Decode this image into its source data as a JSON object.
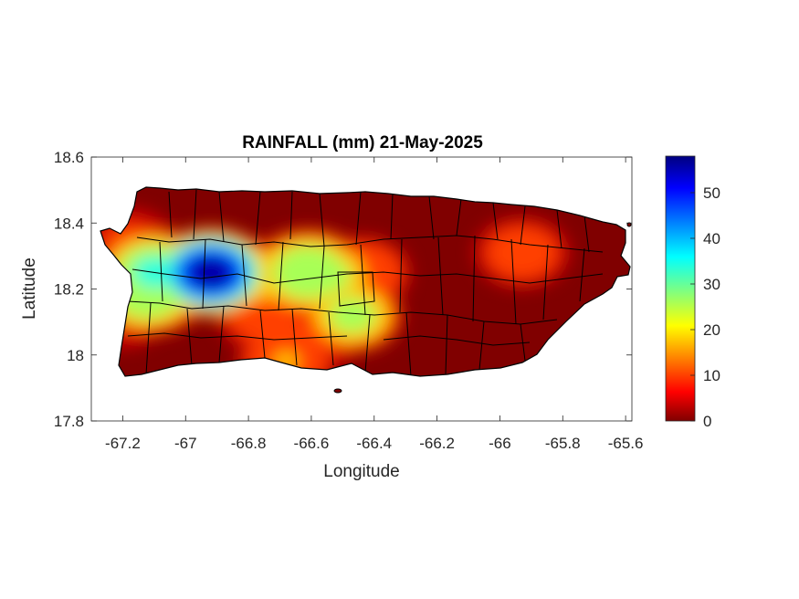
{
  "chart_data": {
    "type": "heatmap",
    "title": "RAINFALL (mm) 21-May-2025",
    "xlabel": "Longitude",
    "ylabel": "Latitude",
    "xlim": [
      -67.3,
      -65.58
    ],
    "ylim": [
      17.8,
      18.6
    ],
    "x_ticks": [
      "-67.2",
      "-67",
      "-66.8",
      "-66.6",
      "-66.4",
      "-66.2",
      "-66",
      "-65.8",
      "-65.6"
    ],
    "y_ticks": [
      "18.6",
      "18.4",
      "18.2",
      "18",
      "17.8"
    ],
    "colorbar": {
      "range": [
        0,
        58
      ],
      "ticks": [
        "0",
        "10",
        "20",
        "30",
        "40",
        "50"
      ],
      "colormap": "jet"
    },
    "rain_cells": [
      {
        "lon": -66.92,
        "lat": 18.25,
        "value": 58
      },
      {
        "lon": -67.1,
        "lat": 18.25,
        "value": 35
      },
      {
        "lon": -67.12,
        "lat": 18.19,
        "value": 33
      },
      {
        "lon": -66.98,
        "lat": 18.24,
        "value": 28
      },
      {
        "lon": -66.8,
        "lat": 18.24,
        "value": 24
      },
      {
        "lon": -66.61,
        "lat": 18.25,
        "value": 33
      },
      {
        "lon": -66.55,
        "lat": 18.24,
        "value": 28
      },
      {
        "lon": -66.69,
        "lat": 18.24,
        "value": 23
      },
      {
        "lon": -66.47,
        "lat": 18.12,
        "value": 28
      },
      {
        "lon": -66.44,
        "lat": 18.25,
        "value": 17
      },
      {
        "lon": -66.68,
        "lat": 17.98,
        "value": 18
      },
      {
        "lon": -66.75,
        "lat": 18.12,
        "value": 14
      },
      {
        "lon": -66.58,
        "lat": 18.06,
        "value": 11
      },
      {
        "lon": -65.93,
        "lat": 18.31,
        "value": 14
      },
      {
        "lon": -67.18,
        "lat": 18.34,
        "value": 11
      },
      {
        "lon": -67.2,
        "lat": 18.12,
        "value": 9
      }
    ]
  }
}
